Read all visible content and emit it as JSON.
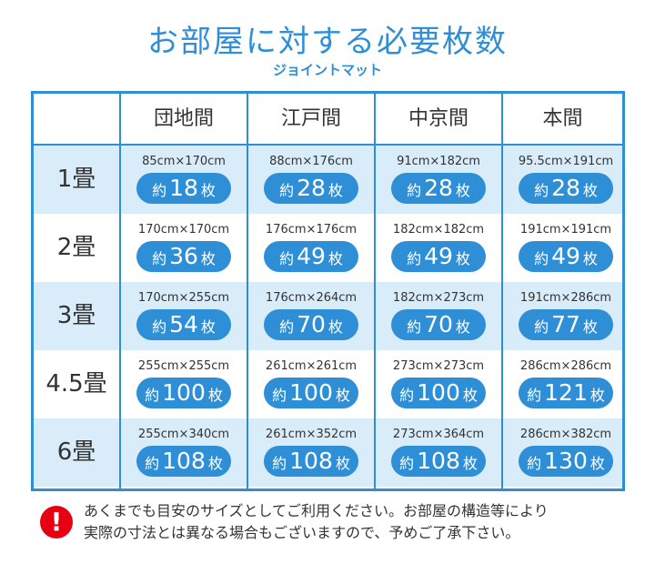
{
  "title": "お部屋に対する必要枚数",
  "subtitle": "ジョイントマット",
  "table": {
    "headers": [
      "",
      "団地間",
      "江戸間",
      "中京間",
      "本間"
    ],
    "count_prefix": "約",
    "count_suffix": "枚",
    "rows": [
      {
        "label": "1畳",
        "cells": [
          {
            "size": "85cm×170cm",
            "count": "18"
          },
          {
            "size": "88cm×176cm",
            "count": "28"
          },
          {
            "size": "91cm×182cm",
            "count": "28"
          },
          {
            "size": "95.5cm×191cm",
            "count": "28"
          }
        ]
      },
      {
        "label": "2畳",
        "cells": [
          {
            "size": "170cm×170cm",
            "count": "36"
          },
          {
            "size": "176cm×176cm",
            "count": "49"
          },
          {
            "size": "182cm×182cm",
            "count": "49"
          },
          {
            "size": "191cm×191cm",
            "count": "49"
          }
        ]
      },
      {
        "label": "3畳",
        "cells": [
          {
            "size": "170cm×255cm",
            "count": "54"
          },
          {
            "size": "176cm×264cm",
            "count": "70"
          },
          {
            "size": "182cm×273cm",
            "count": "70"
          },
          {
            "size": "191cm×286cm",
            "count": "77"
          }
        ]
      },
      {
        "label": "4.5畳",
        "cells": [
          {
            "size": "255cm×255cm",
            "count": "100"
          },
          {
            "size": "261cm×261cm",
            "count": "100"
          },
          {
            "size": "273cm×273cm",
            "count": "100"
          },
          {
            "size": "286cm×286cm",
            "count": "121"
          }
        ]
      },
      {
        "label": "6畳",
        "cells": [
          {
            "size": "255cm×340cm",
            "count": "108"
          },
          {
            "size": "261cm×352cm",
            "count": "108"
          },
          {
            "size": "273cm×364cm",
            "count": "108"
          },
          {
            "size": "286cm×382cm",
            "count": "130"
          }
        ]
      }
    ]
  },
  "notice": {
    "icon": "!",
    "line1": "あくまでも目安のサイズとしてご利用ください。お部屋の構造等により",
    "line2": "実際の寸法とは異なる場合もございますので、予めご了承下さい。"
  },
  "colors": {
    "accent": "#2f8fd6",
    "row_tint": "#d8ecf9",
    "warning": "#e60012"
  }
}
